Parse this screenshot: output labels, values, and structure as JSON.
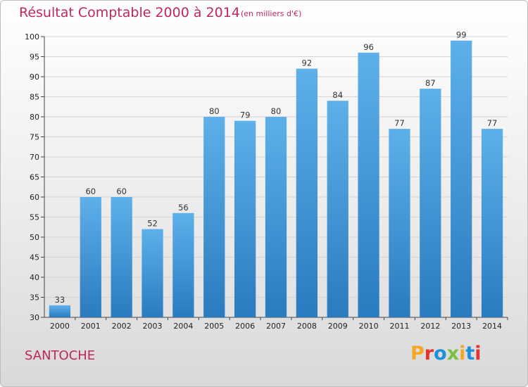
{
  "header": {
    "title": "Résultat Comptable 2000 à 2014",
    "subtitle": "(en milliers d'€)"
  },
  "footer": {
    "location": "SANTOCHE",
    "logo_text": "Proxiti",
    "logo_colors": [
      "#f5a623",
      "#e8312a",
      "#1f8fd8",
      "#7ac142",
      "#f5a623",
      "#1f8fd8",
      "#e8312a"
    ]
  },
  "colors": {
    "bar_top": "#5eb0ea",
    "bar_bottom": "#2a7bbf",
    "accent": "#c0285a"
  },
  "chart_data": {
    "type": "bar",
    "title": "Résultat Comptable 2000 à 2014",
    "subtitle": "(en milliers d'€)",
    "categories": [
      "2000",
      "2001",
      "2002",
      "2003",
      "2004",
      "2005",
      "2006",
      "2007",
      "2008",
      "2009",
      "2010",
      "2011",
      "2012",
      "2013",
      "2014"
    ],
    "values": [
      33,
      60,
      60,
      52,
      56,
      80,
      79,
      80,
      92,
      84,
      96,
      77,
      87,
      99,
      77
    ],
    "ylim": [
      30,
      100
    ],
    "yticks": [
      30,
      35,
      40,
      45,
      50,
      55,
      60,
      65,
      70,
      75,
      80,
      85,
      90,
      95,
      100
    ],
    "grid": true,
    "data_labels": true
  }
}
